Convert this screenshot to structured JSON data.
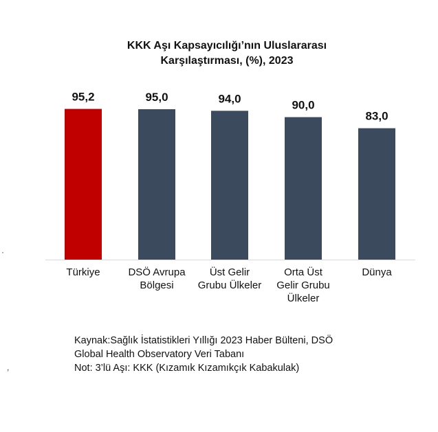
{
  "chart_data": {
    "type": "bar",
    "title_lines": [
      "KKK Aşı Kapsayıcılığı’nın Uluslararası",
      "Karşılaştırması, (%), 2023"
    ],
    "categories": [
      [
        "Türkiye"
      ],
      [
        "DSÖ Avrupa",
        "Bölgesi"
      ],
      [
        "Üst Gelir",
        "Grubu Ülkeler"
      ],
      [
        "Orta Üst",
        "Gelir Grubu",
        "Ülkeler"
      ],
      [
        "Dünya"
      ]
    ],
    "values": [
      95.2,
      95.0,
      94.0,
      90.0,
      83.0
    ],
    "value_labels": [
      "95,2",
      "95,0",
      "94,0",
      "90,0",
      "83,0"
    ],
    "bar_colors": [
      "#c00000",
      "#3b4a5d",
      "#3b4a5d",
      "#3b4a5d",
      "#3b4a5d"
    ],
    "highlight_color": "#c00000",
    "default_color": "#3b4a5d",
    "ylim": [
      0,
      100
    ],
    "grid": false,
    "legend": "none"
  },
  "footer": {
    "source_line1": "Kaynak:Sağlık İstatistikleri Yıllığı 2023 Haber Bülteni, DSÖ",
    "source_line2": "Global Health Observatory Veri Tabanı",
    "note": "Not: 3’lü Aşı: KKK (Kızamık Kızamıkçık Kabakulak)"
  }
}
